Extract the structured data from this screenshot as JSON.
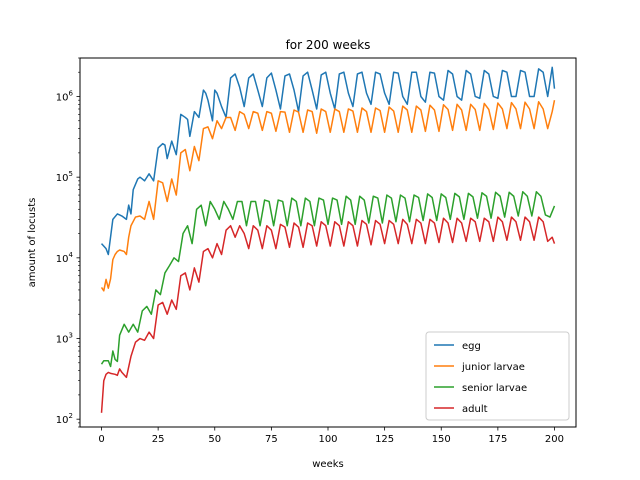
{
  "chart_data": {
    "type": "line",
    "title": "for 200 weeks",
    "xlabel": "weeks",
    "ylabel": "amount of locusts",
    "y_scale": "log",
    "xlim": [
      -9.5,
      209.5
    ],
    "ylim": [
      80,
      3000000
    ],
    "x_ticks": [
      0,
      25,
      50,
      75,
      100,
      125,
      150,
      175,
      200
    ],
    "y_ticks": [
      {
        "value": 100,
        "base": "10",
        "exp": "2"
      },
      {
        "value": 1000,
        "base": "10",
        "exp": "3"
      },
      {
        "value": 10000,
        "base": "10",
        "exp": "4"
      },
      {
        "value": 100000,
        "base": "10",
        "exp": "5"
      },
      {
        "value": 1000000,
        "base": "10",
        "exp": "6"
      }
    ],
    "legend_position": "lower-right",
    "grid": false,
    "series": [
      {
        "name": "egg",
        "color": "#1f77b4",
        "x": [
          0,
          2,
          3,
          5,
          7,
          8,
          9,
          11,
          12,
          13,
          14,
          16,
          17,
          18,
          19,
          21,
          23,
          25,
          27,
          28,
          29,
          31,
          33,
          35,
          37,
          38,
          39,
          41,
          43,
          45,
          46,
          47,
          49,
          50,
          51,
          53,
          55,
          57,
          59,
          61,
          63,
          65,
          67,
          69,
          71,
          73,
          75,
          77,
          79,
          81,
          83,
          85,
          87,
          89,
          91,
          93,
          95,
          97,
          99,
          101,
          103,
          105,
          107,
          109,
          111,
          113,
          115,
          117,
          119,
          121,
          123,
          125,
          127,
          129,
          131,
          133,
          135,
          137,
          139,
          141,
          143,
          145,
          147,
          149,
          151,
          153,
          155,
          157,
          159,
          161,
          163,
          165,
          167,
          169,
          171,
          173,
          175,
          177,
          179,
          181,
          183,
          185,
          187,
          189,
          191,
          193,
          195,
          197,
          199,
          200
        ],
        "values": [
          15000,
          13000,
          11000,
          30000,
          35000,
          34000,
          33000,
          30000,
          45000,
          35000,
          70000,
          95000,
          100000,
          95000,
          90000,
          110000,
          90000,
          230000,
          260000,
          250000,
          170000,
          280000,
          190000,
          600000,
          550000,
          520000,
          320000,
          650000,
          550000,
          1200000,
          1100000,
          900000,
          500000,
          1200000,
          1100000,
          750000,
          550000,
          1700000,
          1900000,
          1300000,
          750000,
          1700000,
          1900000,
          1200000,
          750000,
          1700000,
          1950000,
          1200000,
          700000,
          1800000,
          1900000,
          1200000,
          650000,
          1800000,
          2000000,
          1200000,
          700000,
          1850000,
          2000000,
          1100000,
          700000,
          1900000,
          2000000,
          1100000,
          750000,
          1900000,
          2000000,
          1100000,
          800000,
          2000000,
          1900000,
          1100000,
          800000,
          2000000,
          1950000,
          1000000,
          800000,
          2000000,
          2000000,
          1000000,
          850000,
          2000000,
          1950000,
          1000000,
          900000,
          2100000,
          1900000,
          1000000,
          900000,
          2100000,
          1900000,
          1000000,
          950000,
          2100000,
          1900000,
          1000000,
          950000,
          2100000,
          2000000,
          1000000,
          1000000,
          2100000,
          2000000,
          1000000,
          1000000,
          2200000,
          2000000,
          1000000,
          2300000,
          1250000
        ]
      },
      {
        "name": "junior larvae",
        "color": "#ff7f0e",
        "x": [
          0,
          1,
          2,
          3,
          4,
          5,
          6,
          7,
          8,
          10,
          11,
          12,
          13,
          15,
          17,
          19,
          21,
          23,
          25,
          27,
          29,
          31,
          33,
          35,
          37,
          39,
          41,
          43,
          45,
          47,
          49,
          51,
          53,
          55,
          57,
          59,
          61,
          63,
          65,
          67,
          69,
          71,
          73,
          75,
          77,
          79,
          81,
          83,
          85,
          87,
          89,
          91,
          93,
          95,
          97,
          99,
          101,
          103,
          105,
          107,
          109,
          111,
          113,
          115,
          117,
          119,
          121,
          123,
          125,
          127,
          129,
          131,
          133,
          135,
          137,
          139,
          141,
          143,
          145,
          147,
          149,
          151,
          153,
          155,
          157,
          159,
          161,
          163,
          165,
          167,
          169,
          171,
          173,
          175,
          177,
          179,
          181,
          183,
          185,
          187,
          189,
          191,
          193,
          195,
          197,
          199,
          200
        ],
        "values": [
          4300,
          3900,
          5400,
          4200,
          5500,
          9500,
          11000,
          12000,
          12500,
          12000,
          11000,
          18000,
          25000,
          32000,
          33000,
          30000,
          50000,
          30000,
          90000,
          85000,
          50000,
          95000,
          60000,
          200000,
          220000,
          120000,
          240000,
          160000,
          400000,
          420000,
          300000,
          500000,
          400000,
          550000,
          550000,
          380000,
          650000,
          600000,
          400000,
          650000,
          620000,
          380000,
          650000,
          620000,
          370000,
          650000,
          640000,
          360000,
          680000,
          640000,
          360000,
          680000,
          650000,
          350000,
          700000,
          650000,
          360000,
          700000,
          650000,
          360000,
          700000,
          660000,
          360000,
          720000,
          650000,
          360000,
          720000,
          670000,
          360000,
          740000,
          660000,
          360000,
          760000,
          680000,
          360000,
          760000,
          680000,
          370000,
          780000,
          680000,
          370000,
          790000,
          690000,
          380000,
          800000,
          680000,
          380000,
          800000,
          690000,
          380000,
          820000,
          690000,
          390000,
          830000,
          700000,
          400000,
          840000,
          700000,
          400000,
          850000,
          700000,
          400000,
          860000,
          700000,
          400000,
          650000,
          900000
        ]
      },
      {
        "name": "senior larvae",
        "color": "#2ca02c",
        "x": [
          0,
          1,
          3,
          4,
          5,
          6,
          7,
          8,
          10,
          12,
          14,
          16,
          18,
          20,
          22,
          24,
          26,
          28,
          30,
          32,
          34,
          36,
          38,
          40,
          42,
          44,
          46,
          48,
          50,
          52,
          54,
          56,
          58,
          60,
          62,
          64,
          66,
          68,
          70,
          72,
          74,
          76,
          78,
          80,
          82,
          84,
          86,
          88,
          90,
          92,
          94,
          96,
          98,
          100,
          102,
          104,
          106,
          108,
          110,
          112,
          114,
          116,
          118,
          120,
          122,
          124,
          126,
          128,
          130,
          132,
          134,
          136,
          138,
          140,
          142,
          144,
          146,
          148,
          150,
          152,
          154,
          156,
          158,
          160,
          162,
          164,
          166,
          168,
          170,
          172,
          174,
          176,
          178,
          180,
          182,
          184,
          186,
          188,
          190,
          192,
          194,
          196,
          198,
          200
        ],
        "values": [
          480,
          530,
          530,
          450,
          700,
          550,
          520,
          1100,
          1500,
          1200,
          1500,
          1200,
          2200,
          2500,
          2000,
          4000,
          3500,
          6500,
          8000,
          10000,
          9000,
          20000,
          25000,
          15000,
          40000,
          45000,
          25000,
          50000,
          40000,
          30000,
          50000,
          40000,
          30000,
          50000,
          50000,
          25000,
          50000,
          50000,
          25000,
          52000,
          50000,
          25000,
          52000,
          50000,
          25000,
          55000,
          50000,
          25000,
          55000,
          50000,
          25000,
          55000,
          52000,
          26000,
          55000,
          52000,
          26000,
          58000,
          52000,
          26000,
          58000,
          52000,
          27000,
          58000,
          55000,
          27000,
          60000,
          55000,
          28000,
          60000,
          55000,
          28000,
          60000,
          56000,
          29000,
          62000,
          56000,
          29000,
          62000,
          56000,
          30000,
          63000,
          57000,
          30000,
          63000,
          57000,
          31000,
          64000,
          58000,
          31000,
          65000,
          58000,
          32000,
          65000,
          58000,
          33000,
          66000,
          58000,
          33000,
          66000,
          58000,
          34000,
          32000,
          44000
        ]
      },
      {
        "name": "adult",
        "color": "#d62728",
        "x": [
          0,
          1,
          2,
          3,
          4,
          6,
          7,
          8,
          9,
          11,
          13,
          15,
          17,
          19,
          21,
          23,
          25,
          27,
          29,
          31,
          33,
          35,
          37,
          39,
          41,
          43,
          45,
          47,
          49,
          51,
          53,
          55,
          57,
          59,
          61,
          63,
          65,
          67,
          69,
          71,
          73,
          75,
          77,
          79,
          81,
          83,
          85,
          87,
          89,
          91,
          93,
          95,
          97,
          99,
          101,
          103,
          105,
          107,
          109,
          111,
          113,
          115,
          117,
          119,
          121,
          123,
          125,
          127,
          129,
          131,
          133,
          135,
          137,
          139,
          141,
          143,
          145,
          147,
          149,
          151,
          153,
          155,
          157,
          159,
          161,
          163,
          165,
          167,
          169,
          171,
          173,
          175,
          177,
          179,
          181,
          183,
          185,
          187,
          189,
          191,
          193,
          195,
          197,
          199,
          200
        ],
        "values": [
          120,
          300,
          360,
          380,
          370,
          360,
          350,
          420,
          380,
          330,
          600,
          900,
          1000,
          950,
          1200,
          1000,
          2600,
          2800,
          2000,
          3000,
          2300,
          6000,
          6500,
          4000,
          7500,
          5000,
          12000,
          13000,
          10000,
          15000,
          11000,
          22000,
          25000,
          18000,
          25000,
          20000,
          13000,
          25000,
          22000,
          13000,
          25000,
          22000,
          13000,
          26000,
          24000,
          13500,
          27000,
          24000,
          13500,
          27000,
          25000,
          14000,
          28000,
          25000,
          14000,
          28000,
          25000,
          14000,
          28000,
          25000,
          14000,
          29000,
          26000,
          14500,
          29000,
          26000,
          15000,
          29000,
          26000,
          15000,
          30000,
          26000,
          15000,
          30000,
          27000,
          15000,
          30000,
          27000,
          15500,
          31000,
          27000,
          15500,
          31000,
          27000,
          16000,
          31000,
          28000,
          16000,
          31000,
          28000,
          16000,
          32000,
          28000,
          16500,
          32000,
          28000,
          16500,
          32000,
          28000,
          16500,
          32000,
          28000,
          16000,
          18000,
          15000
        ]
      }
    ]
  }
}
